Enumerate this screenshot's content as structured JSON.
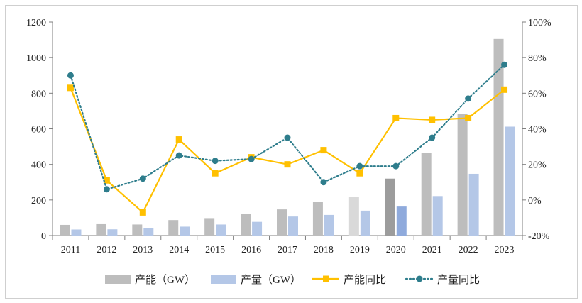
{
  "chart_data": {
    "type": "bar+line",
    "categories": [
      "2011",
      "2012",
      "2013",
      "2014",
      "2015",
      "2016",
      "2017",
      "2018",
      "2019",
      "2020",
      "2021",
      "2022",
      "2023"
    ],
    "series": [
      {
        "name": "产能（GW）",
        "kind": "bar",
        "axis": "left",
        "color": "#bdbdbd",
        "values": [
          60,
          68,
          62,
          87,
          98,
          122,
          147,
          190,
          218,
          320,
          465,
          685,
          1105
        ]
      },
      {
        "name": "产量（GW）",
        "kind": "bar",
        "axis": "left",
        "color": "#b4c7e7",
        "values": [
          34,
          35,
          40,
          50,
          62,
          77,
          107,
          116,
          140,
          163,
          222,
          347,
          612
        ]
      },
      {
        "name": "产能同比",
        "kind": "line",
        "axis": "right",
        "color": "#ffc000",
        "marker": "square",
        "values": [
          63,
          11,
          -7,
          34,
          15,
          24,
          20,
          28,
          15,
          46,
          45,
          46,
          62
        ]
      },
      {
        "name": "产量同比",
        "kind": "line-dotted",
        "axis": "right",
        "color": "#2e7d8c",
        "marker": "circle",
        "values": [
          70,
          6,
          12,
          25,
          22,
          23,
          35,
          10,
          19,
          19,
          35,
          57,
          76
        ]
      }
    ],
    "highlight": {
      "index": 9,
      "bar_colors": [
        "#9c9c9c",
        "#8faadc"
      ]
    },
    "y_left": {
      "min": 0,
      "max": 1200,
      "step": 200,
      "ticks": [
        "0",
        "200",
        "400",
        "600",
        "800",
        "1000",
        "1200"
      ]
    },
    "y_right": {
      "min": -20,
      "max": 100,
      "step": 20,
      "ticks": [
        "-20%",
        "0%",
        "20%",
        "40%",
        "60%",
        "80%",
        "100%"
      ]
    },
    "legend": [
      "产能（GW）",
      "产量（GW）",
      "产能同比",
      "产量同比"
    ],
    "legend_position": "bottom",
    "grid": false
  }
}
